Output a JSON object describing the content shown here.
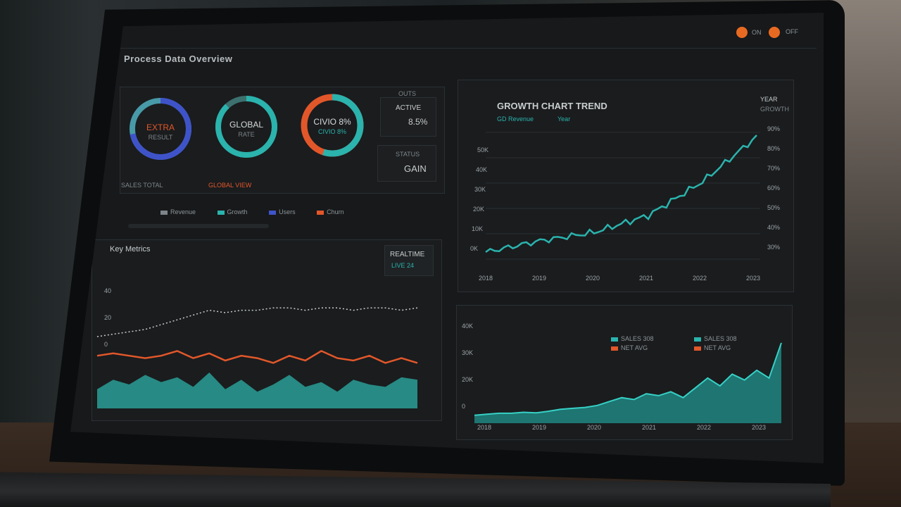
{
  "dashboard": {
    "title": "Process Data Overview",
    "window_controls": [
      "ON",
      "OFF"
    ]
  },
  "kpis": [
    {
      "value": "EXTRA",
      "sub": "RESULT",
      "label": "SALES TOTAL",
      "progress": 0.72,
      "color": "#3f53c9",
      "track": "#4ea8b7"
    },
    {
      "value": "GLOBAL",
      "sub": "RATE",
      "label": "GLOBAL VIEW",
      "progress": 0.88,
      "color": "#2bb3ad",
      "track": "#5ec6c0"
    },
    {
      "value": "CIVIO 8%",
      "sub": "CIVIO 8%",
      "label": "CIVIO 8%",
      "progress": 0.55,
      "color": "#2bb3ad",
      "track": "#e2572a"
    }
  ],
  "mini_stats": [
    {
      "label": "ACTIVE",
      "value": "8.5%",
      "prefix": "OUTS"
    },
    {
      "label": "STATUS",
      "value": "GAIN",
      "prefix": ""
    }
  ],
  "legend_strip": [
    {
      "name": "Revenue",
      "color": "#7d858a"
    },
    {
      "name": "Growth",
      "color": "#2bb3ad"
    },
    {
      "name": "Users",
      "color": "#3f53c9"
    },
    {
      "name": "Churn",
      "color": "#e2572a"
    }
  ],
  "main_chart": {
    "title": "GROWTH CHART TREND",
    "subtitle_a": "GD Revenue",
    "subtitle_b": "Year",
    "right_header": "YEAR",
    "right_sub": "GROWTH",
    "y_ticks": [
      "50K",
      "40K",
      "30K",
      "20K",
      "10K",
      "0K"
    ],
    "right_ticks": [
      "90%",
      "80%",
      "70%",
      "60%",
      "50%",
      "40%",
      "30%"
    ],
    "x_ticks": [
      "2018",
      "2019",
      "2020",
      "2021",
      "2022",
      "2023"
    ]
  },
  "lower_left": {
    "title": "Key Metrics",
    "badge": "REALTIME",
    "badge_sub": "LIVE 24",
    "y_ticks": [
      "40",
      "20",
      "0"
    ]
  },
  "lower_right": {
    "y_ticks": [
      "40K",
      "30K",
      "20K",
      "0"
    ],
    "x_ticks": [
      "2018",
      "2019",
      "2020",
      "2021",
      "2022",
      "2023"
    ],
    "legend": [
      {
        "name": "SALES",
        "value": "308",
        "color": "#2bb3ad"
      },
      {
        "name": "NET",
        "value": "AVG",
        "color": "#e2572a"
      },
      {
        "name": "SALES",
        "value": "308",
        "color": "#2bb3ad"
      },
      {
        "name": "NET",
        "value": "AVG",
        "color": "#e2572a"
      }
    ]
  },
  "chart_data": [
    {
      "type": "line",
      "title": "GROWTH CHART TREND",
      "x": [
        2018,
        2019,
        2020,
        2021,
        2022,
        2023
      ],
      "series": [
        {
          "values": [
            5,
            9,
            12,
            18,
            30,
            46
          ]
        }
      ],
      "ylim": [
        0,
        50
      ],
      "grid": true
    },
    {
      "type": "line",
      "title": "Key Metrics",
      "x": [
        0,
        1,
        2,
        3,
        4,
        5,
        6,
        7,
        8,
        9,
        10,
        11,
        12,
        13,
        14,
        15,
        16,
        17,
        18,
        19,
        20
      ],
      "series": [
        {
          "values": [
            30,
            31,
            32,
            33,
            35,
            37,
            39,
            41,
            40,
            41,
            41,
            42,
            42,
            41,
            42,
            42,
            41,
            42,
            42,
            41,
            42
          ]
        },
        {
          "values": [
            22,
            23,
            22,
            21,
            22,
            24,
            21,
            23,
            20,
            22,
            21,
            19,
            22,
            20,
            24,
            21,
            20,
            22,
            19,
            21,
            19
          ]
        },
        {
          "values": [
            8,
            12,
            10,
            14,
            11,
            13,
            9,
            15,
            8,
            12,
            7,
            10,
            14,
            9,
            11,
            7,
            12,
            10,
            9,
            13,
            12
          ]
        }
      ],
      "ylim": [
        0,
        50
      ]
    },
    {
      "type": "area",
      "x": [
        0,
        1,
        2,
        3,
        4,
        5,
        6,
        7,
        8,
        9,
        10,
        11,
        12,
        13,
        14,
        15,
        16,
        17,
        18,
        19,
        20,
        21,
        22,
        23,
        24,
        25
      ],
      "series": [
        {
          "values": [
            3,
            3.5,
            4,
            4,
            4.5,
            4.2,
            5,
            6,
            6.5,
            7,
            8,
            10,
            12,
            11,
            14,
            13,
            15,
            12,
            17,
            22,
            18,
            24,
            21,
            26,
            22,
            40
          ]
        }
      ],
      "ylim": [
        0,
        45
      ]
    }
  ]
}
